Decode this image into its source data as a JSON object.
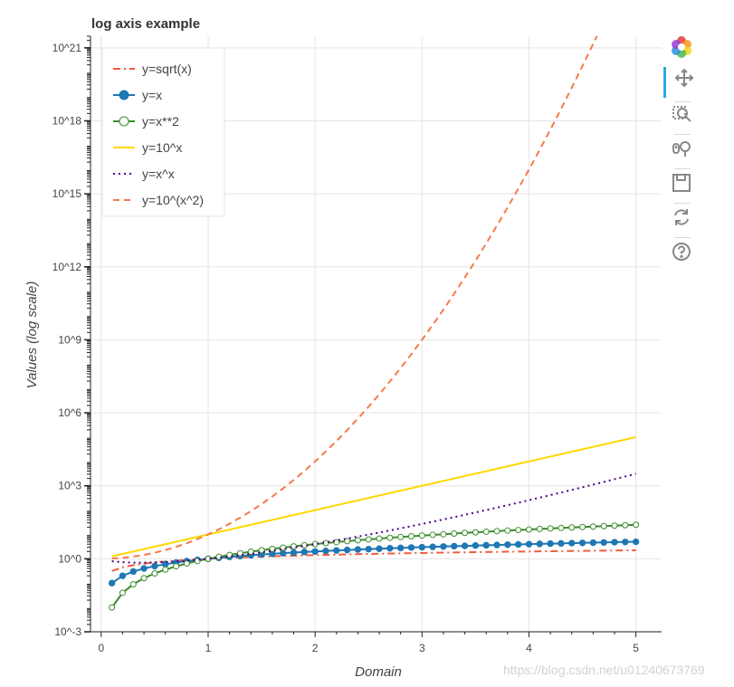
{
  "chart_data": {
    "type": "line",
    "title": "log axis example",
    "xlabel": "Domain",
    "ylabel": "Values (log scale)",
    "y_scale": "log",
    "xlim": [
      -0.1,
      5.24
    ],
    "ylim": [
      0.001,
      3e+21
    ],
    "x_ticks": [
      0,
      1,
      2,
      3,
      4,
      5
    ],
    "y_tick_values": [
      0.001,
      1,
      1000,
      1000000,
      1000000000,
      1000000000000.0,
      1000000000000000.0,
      1e+18,
      1e+21
    ],
    "y_tick_labels": [
      "10^-3",
      "10^0",
      "10^3",
      "10^6",
      "10^9",
      "10^12",
      "10^15",
      "10^18",
      "10^21"
    ],
    "grid": true,
    "legend_position": "top-left",
    "x": [
      0.1,
      0.2,
      0.3,
      0.4,
      0.5,
      0.6,
      0.7,
      0.8,
      0.9,
      1.0,
      1.1,
      1.2,
      1.3,
      1.4,
      1.5,
      1.6,
      1.7,
      1.8,
      1.9,
      2.0,
      2.1,
      2.2,
      2.3,
      2.4,
      2.5,
      2.6,
      2.7,
      2.8,
      2.9,
      3.0,
      3.1,
      3.2,
      3.3,
      3.4,
      3.5,
      3.6,
      3.7,
      3.8,
      3.9,
      4.0,
      4.1,
      4.2,
      4.3,
      4.4,
      4.5,
      4.6,
      4.7,
      4.8,
      4.9,
      5.0
    ],
    "series": [
      {
        "name": "y=sqrt(x)",
        "function": "sqrt(x)",
        "color": "#ee5d3c",
        "dash": "dotdash",
        "marker": "none"
      },
      {
        "name": "y=x",
        "function": "x",
        "color": "#1f77b4",
        "dash": "solid",
        "marker": "filled-circle"
      },
      {
        "name": "y=x**2",
        "function": "x**2",
        "color": "#3c8c2c",
        "dash": "solid",
        "marker": "open-circle"
      },
      {
        "name": "y=10^x",
        "function": "10^x",
        "color": "#ffd700",
        "dash": "solid",
        "marker": "none"
      },
      {
        "name": "y=x^x",
        "function": "x^x",
        "color": "#4b0082",
        "dash": "dotted",
        "marker": "none"
      },
      {
        "name": "y=10^(x^2)",
        "function": "10^(x^2)",
        "color": "#f57a4a",
        "dash": "dashed",
        "marker": "none"
      }
    ]
  },
  "toolbar": {
    "tools": [
      {
        "icon": "bokeh-logo-icon",
        "active": false
      },
      {
        "icon": "pan-icon",
        "active": true
      },
      {
        "icon": "box-zoom-icon",
        "active": false
      },
      {
        "icon": "wheel-zoom-icon",
        "active": false
      },
      {
        "icon": "save-icon",
        "active": false
      },
      {
        "icon": "reset-icon",
        "active": false
      },
      {
        "icon": "help-icon",
        "active": false
      }
    ]
  },
  "watermark": "https://blog.csdn.net/u012406737​69"
}
